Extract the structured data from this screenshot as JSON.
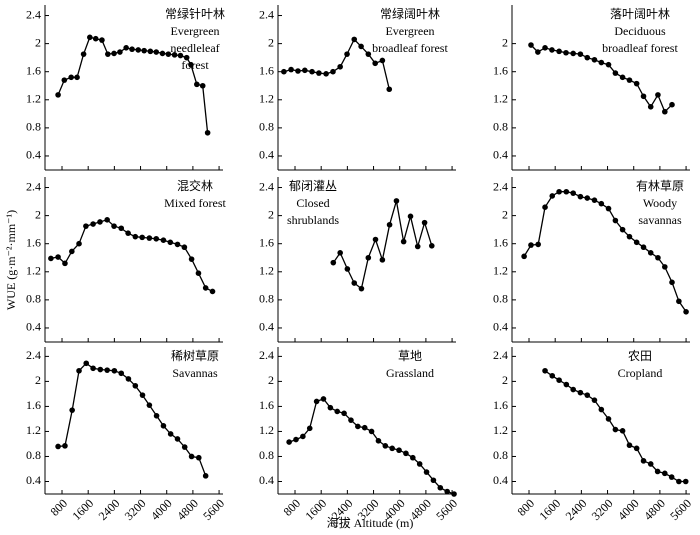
{
  "ylabel": "WUE (g·m⁻²·mm⁻¹)",
  "xlabel": "海拔 Altitude (m)",
  "chart_data": [
    {
      "type": "line",
      "title": [
        "常绿针叶林",
        "Evergreen",
        "needleleaf",
        "forest"
      ],
      "color": "#000000",
      "x": [
        680,
        870,
        1080,
        1260,
        1460,
        1650,
        1830,
        2020,
        2200,
        2390,
        2570,
        2760,
        2940,
        3130,
        3310,
        3500,
        3680,
        3870,
        4050,
        4240,
        4420,
        4610,
        4740,
        4920,
        5100,
        5250
      ],
      "values": [
        1.27,
        1.48,
        1.52,
        1.52,
        1.85,
        2.09,
        2.07,
        2.05,
        1.85,
        1.86,
        1.88,
        1.94,
        1.92,
        1.91,
        1.9,
        1.89,
        1.88,
        1.86,
        1.85,
        1.84,
        1.83,
        1.8,
        1.7,
        1.42,
        1.4,
        0.73
      ],
      "xlim": [
        280,
        5720
      ],
      "xticks": [
        800,
        1600,
        2400,
        3200,
        4000,
        4800,
        5600
      ],
      "ylim": [
        0.2,
        2.55
      ],
      "yticks": [
        0.4,
        0.8,
        1.2,
        1.6,
        2.0,
        2.4
      ]
    },
    {
      "type": "line",
      "title": [
        "常绿阔叶林",
        "Evergreen",
        "broadleaf forest"
      ],
      "color": "#000000",
      "x": [
        460,
        680,
        890,
        1100,
        1320,
        1530,
        1750,
        1960,
        2180,
        2390,
        2610,
        2820,
        3040,
        3250,
        3470,
        3680
      ],
      "values": [
        1.6,
        1.63,
        1.61,
        1.62,
        1.6,
        1.58,
        1.57,
        1.6,
        1.67,
        1.85,
        2.06,
        1.96,
        1.85,
        1.72,
        1.76,
        1.35
      ],
      "xlim": [
        280,
        5720
      ],
      "xticks": [
        800,
        1600,
        2400,
        3200,
        4000,
        4800,
        5600
      ],
      "ylim": [
        0.2,
        2.55
      ],
      "yticks": [
        0.4,
        0.8,
        1.2,
        1.6,
        2.0,
        2.4
      ]
    },
    {
      "type": "line",
      "title": [
        "落叶阔叶林",
        "Deciduous",
        "broadleaf forest"
      ],
      "color": "#000000",
      "x": [
        860,
        1070,
        1290,
        1500,
        1720,
        1930,
        2150,
        2370,
        2580,
        2800,
        3010,
        3230,
        3440,
        3660,
        3870,
        4090,
        4300,
        4520,
        4740,
        4950,
        5170
      ],
      "values": [
        1.98,
        1.88,
        1.94,
        1.91,
        1.89,
        1.87,
        1.86,
        1.85,
        1.8,
        1.77,
        1.73,
        1.7,
        1.58,
        1.52,
        1.48,
        1.43,
        1.25,
        1.1,
        1.27,
        1.03,
        1.13
      ],
      "xlim": [
        280,
        5720
      ],
      "xticks": [
        800,
        1600,
        2400,
        3200,
        4000,
        4800,
        5600
      ],
      "ylim": [
        0.2,
        2.55
      ],
      "yticks": [
        0.4,
        0.8,
        1.2,
        1.6,
        2.0
      ]
    },
    {
      "type": "line",
      "title": [
        "混交林",
        "Mixed forest"
      ],
      "color": "#000000",
      "x": [
        460,
        680,
        890,
        1100,
        1320,
        1530,
        1750,
        1960,
        2180,
        2390,
        2610,
        2820,
        3040,
        3250,
        3470,
        3680,
        3900,
        4110,
        4330,
        4540,
        4760,
        4970,
        5190,
        5400
      ],
      "values": [
        1.39,
        1.41,
        1.32,
        1.49,
        1.6,
        1.85,
        1.88,
        1.91,
        1.94,
        1.85,
        1.82,
        1.75,
        1.7,
        1.69,
        1.68,
        1.67,
        1.65,
        1.62,
        1.59,
        1.55,
        1.38,
        1.18,
        0.97,
        0.92
      ],
      "xlim": [
        280,
        5720
      ],
      "xticks": [
        800,
        1600,
        2400,
        3200,
        4000,
        4800,
        5600
      ],
      "ylim": [
        0.2,
        2.55
      ],
      "yticks": [
        0.4,
        0.8,
        1.2,
        1.6,
        2.0,
        2.4
      ]
    },
    {
      "type": "line",
      "title": [
        "郁闭灌丛",
        "Closed",
        "shrublands"
      ],
      "color": "#000000",
      "x": [
        1970,
        2180,
        2400,
        2610,
        2830,
        3040,
        3260,
        3470,
        3690,
        3900,
        4120,
        4330,
        4550,
        4760,
        4980
      ],
      "values": [
        1.33,
        1.47,
        1.24,
        1.04,
        0.96,
        1.4,
        1.66,
        1.37,
        1.87,
        2.21,
        1.63,
        1.99,
        1.56,
        1.9,
        1.57
      ],
      "xlim": [
        280,
        5720
      ],
      "xticks": [
        800,
        1600,
        2400,
        3200,
        4000,
        4800,
        5600
      ],
      "ylim": [
        0.2,
        2.55
      ],
      "yticks": [
        0.4,
        0.8,
        1.2,
        1.6,
        2.0,
        2.4
      ]
    },
    {
      "type": "line",
      "title": [
        "有林草原",
        "Woody",
        "savannas"
      ],
      "color": "#000000",
      "x": [
        650,
        860,
        1080,
        1290,
        1510,
        1720,
        1940,
        2150,
        2370,
        2580,
        2800,
        3010,
        3230,
        3440,
        3660,
        3870,
        4090,
        4300,
        4520,
        4740,
        4950,
        5170,
        5380,
        5600
      ],
      "values": [
        1.42,
        1.58,
        1.59,
        2.12,
        2.28,
        2.34,
        2.34,
        2.32,
        2.27,
        2.25,
        2.22,
        2.17,
        2.1,
        1.93,
        1.8,
        1.7,
        1.62,
        1.55,
        1.47,
        1.4,
        1.27,
        1.05,
        0.78,
        0.63
      ],
      "xlim": [
        280,
        5720
      ],
      "xticks": [
        800,
        1600,
        2400,
        3200,
        4000,
        4800,
        5600
      ],
      "ylim": [
        0.2,
        2.55
      ],
      "yticks": [
        0.4,
        0.8,
        1.2,
        1.6,
        2.0,
        2.4
      ]
    },
    {
      "type": "line",
      "title": [
        "稀树草原",
        "Savannas"
      ],
      "color": "#000000",
      "x": [
        680,
        890,
        1110,
        1320,
        1540,
        1750,
        1970,
        2180,
        2400,
        2610,
        2830,
        3040,
        3260,
        3470,
        3690,
        3900,
        4120,
        4330,
        4550,
        4760,
        4980,
        5190
      ],
      "values": [
        0.96,
        0.97,
        1.54,
        2.17,
        2.29,
        2.21,
        2.19,
        2.18,
        2.17,
        2.13,
        2.04,
        1.93,
        1.78,
        1.62,
        1.45,
        1.29,
        1.16,
        1.08,
        0.95,
        0.8,
        0.78,
        0.49
      ],
      "xlim": [
        280,
        5720
      ],
      "xticks": [
        800,
        1600,
        2400,
        3200,
        4000,
        4800,
        5600
      ],
      "ylim": [
        0.2,
        2.55
      ],
      "yticks": [
        0.4,
        0.8,
        1.2,
        1.6,
        2.0,
        2.4
      ]
    },
    {
      "type": "line",
      "title": [
        "草地",
        "Grassland"
      ],
      "color": "#000000",
      "x": [
        620,
        830,
        1040,
        1250,
        1460,
        1670,
        1880,
        2090,
        2300,
        2510,
        2720,
        2930,
        3140,
        3350,
        3560,
        3770,
        3980,
        4190,
        4400,
        4610,
        4820,
        5030,
        5240,
        5450,
        5660
      ],
      "values": [
        1.03,
        1.07,
        1.12,
        1.25,
        1.68,
        1.72,
        1.58,
        1.52,
        1.49,
        1.38,
        1.28,
        1.26,
        1.2,
        1.05,
        0.97,
        0.93,
        0.9,
        0.85,
        0.78,
        0.68,
        0.55,
        0.42,
        0.3,
        0.24,
        0.2
      ],
      "xlim": [
        280,
        5720
      ],
      "xticks": [
        800,
        1600,
        2400,
        3200,
        4000,
        4800,
        5600
      ],
      "ylim": [
        0.2,
        2.55
      ],
      "yticks": [
        0.4,
        0.8,
        1.2,
        1.6,
        2.0,
        2.4
      ]
    },
    {
      "type": "line",
      "title": [
        "农田",
        "Cropland"
      ],
      "color": "#000000",
      "x": [
        1290,
        1510,
        1720,
        1940,
        2150,
        2370,
        2580,
        2800,
        3010,
        3230,
        3440,
        3660,
        3870,
        4090,
        4300,
        4520,
        4730,
        4950,
        5160,
        5380,
        5590
      ],
      "values": [
        2.17,
        2.09,
        2.02,
        1.95,
        1.87,
        1.82,
        1.78,
        1.7,
        1.55,
        1.4,
        1.23,
        1.21,
        0.98,
        0.93,
        0.73,
        0.68,
        0.56,
        0.53,
        0.47,
        0.4,
        0.4
      ],
      "xlim": [
        280,
        5720
      ],
      "xticks": [
        800,
        1600,
        2400,
        3200,
        4000,
        4800,
        5600
      ],
      "ylim": [
        0.2,
        2.55
      ],
      "yticks": [
        0.4,
        0.8,
        1.2,
        1.6,
        2.0,
        2.4
      ]
    }
  ]
}
